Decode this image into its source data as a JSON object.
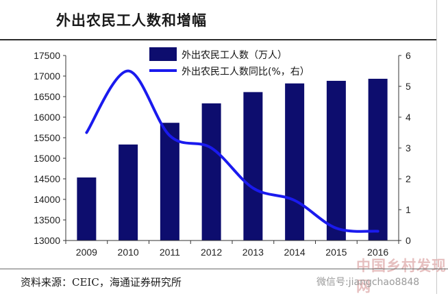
{
  "title": "外出农民工人数和增幅",
  "source": "资料来源：CEIC，海通证券研究所",
  "watermark": "微信号:jiangchao8848",
  "watermark_logo": "中国乡村发现网",
  "colors": {
    "bar": "#0d0d6e",
    "line": "#1a1aee",
    "axis": "#333333"
  },
  "chart_data": {
    "type": "bar",
    "categories": [
      "2009",
      "2010",
      "2011",
      "2012",
      "2013",
      "2014",
      "2015",
      "2016"
    ],
    "series": [
      {
        "name": "外出农民工人数（万人）",
        "type": "bar",
        "axis": "left",
        "values": [
          14533,
          15335,
          15863,
          16336,
          16610,
          16821,
          16884,
          16934
        ]
      },
      {
        "name": "外出农民工人数同比(%，右）",
        "type": "line",
        "axis": "right",
        "values": [
          3.5,
          5.5,
          3.4,
          3.0,
          1.7,
          1.3,
          0.4,
          0.3
        ]
      }
    ],
    "ylim_left": [
      13000,
      17500
    ],
    "yticks_left": [
      13000,
      13500,
      14000,
      14500,
      15000,
      15500,
      16000,
      16500,
      17000,
      17500
    ],
    "ylim_right": [
      0,
      6
    ],
    "yticks_right": [
      0,
      1,
      2,
      3,
      4,
      5,
      6
    ],
    "legend_position": "top-center",
    "grid": false
  }
}
